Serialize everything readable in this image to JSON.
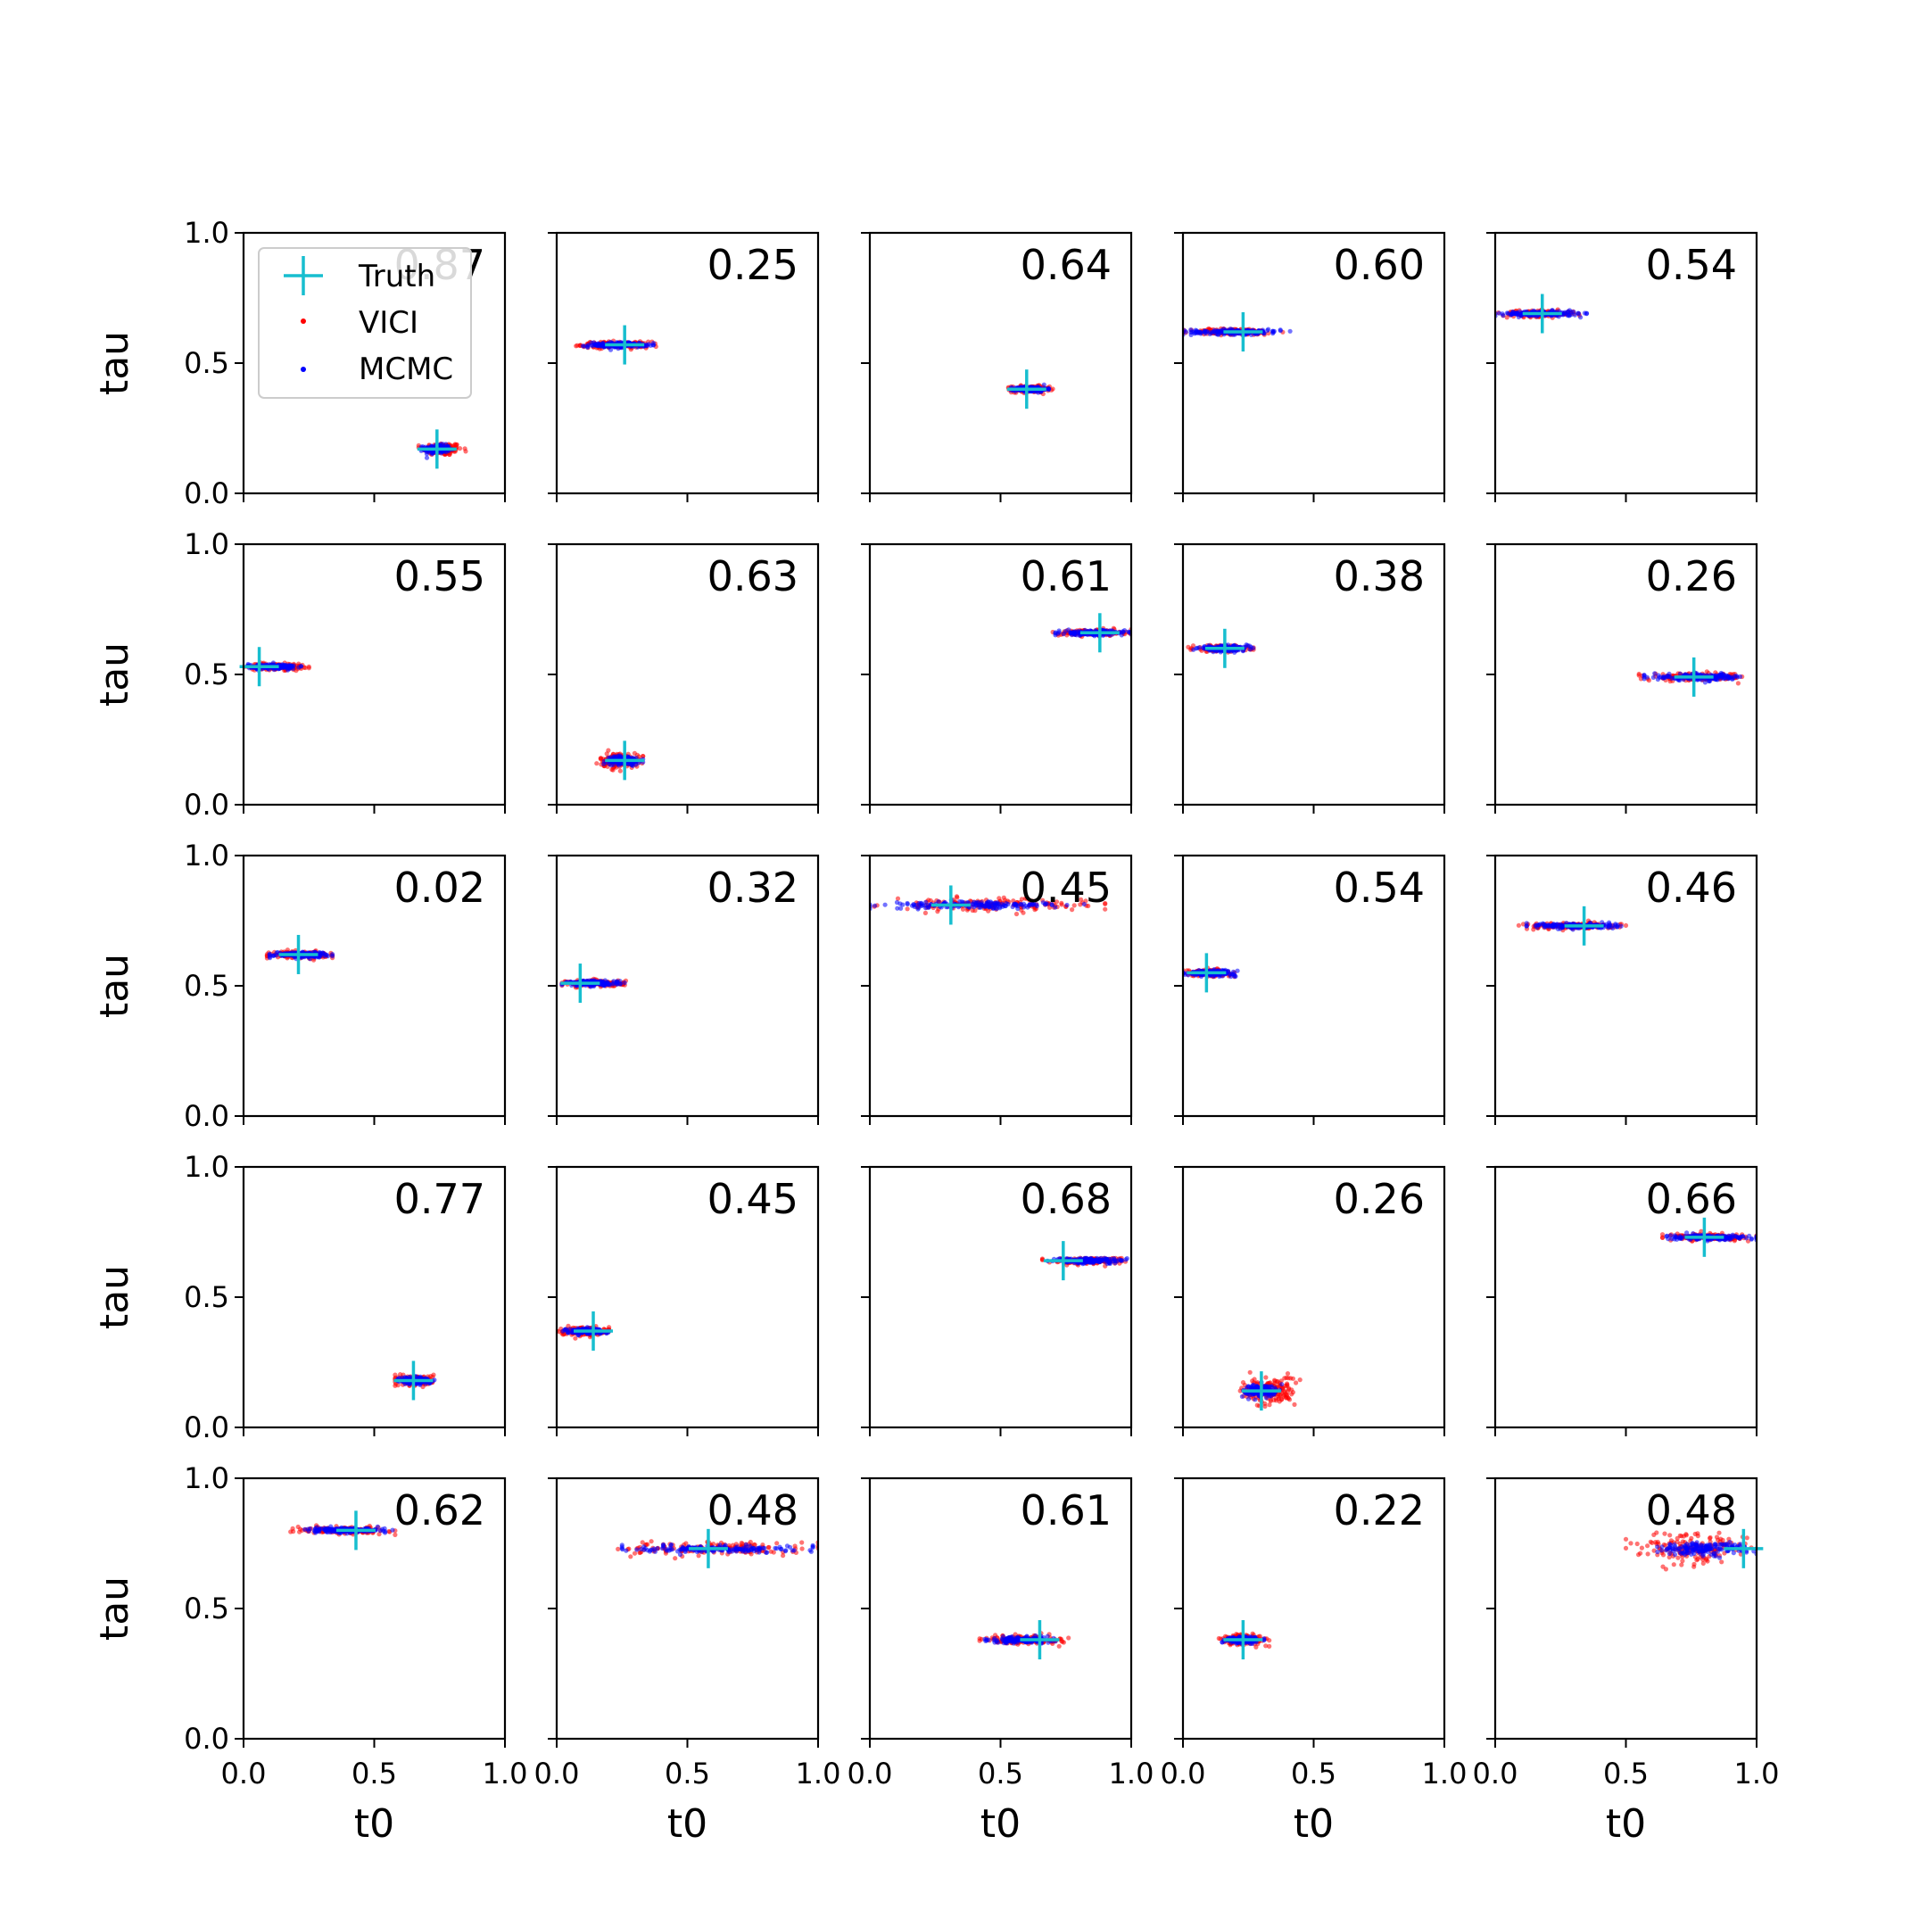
{
  "chart_data": {
    "type": "scatter",
    "grid": false,
    "rows": 5,
    "cols": 5,
    "xlabel": "t0",
    "ylabel": "tau",
    "xlim": [
      0.0,
      1.0
    ],
    "ylim": [
      0.0,
      1.0
    ],
    "xticks": [
      "0.0",
      "0.5",
      "1.0"
    ],
    "yticks": [
      "0.0",
      "0.5",
      "1.0"
    ],
    "legend": {
      "placement": "upper-left of first panel",
      "entries": [
        {
          "name": "Truth",
          "color": "#17becf",
          "marker": "plus"
        },
        {
          "name": "VICI",
          "color": "#ff0000",
          "marker": "dot"
        },
        {
          "name": "MCMC",
          "color": "#0000ff",
          "marker": "dot"
        }
      ]
    },
    "series_colors": {
      "truth": "#17becf",
      "vici": "#ff0000",
      "mcmc": "#0000ff"
    },
    "panels": [
      {
        "score": "0.87",
        "truth": [
          0.74,
          0.17
        ],
        "vici": {
          "x": [
            0.67,
            0.85
          ],
          "y": [
            0.17,
            0.17
          ],
          "spread_y": 0.012
        },
        "mcmc": {
          "x": [
            0.68,
            0.8
          ],
          "y": [
            0.17,
            0.17
          ],
          "spread_y": 0.008
        }
      },
      {
        "score": "0.25",
        "truth": [
          0.26,
          0.57
        ],
        "vici": {
          "x": [
            0.07,
            0.38
          ],
          "y": [
            0.57,
            0.57
          ],
          "spread_y": 0.006
        },
        "mcmc": {
          "x": [
            0.1,
            0.37
          ],
          "y": [
            0.57,
            0.57
          ],
          "spread_y": 0.005
        }
      },
      {
        "score": "0.64",
        "truth": [
          0.6,
          0.4
        ],
        "vici": {
          "x": [
            0.53,
            0.7
          ],
          "y": [
            0.4,
            0.4
          ],
          "spread_y": 0.006
        },
        "mcmc": {
          "x": [
            0.54,
            0.69
          ],
          "y": [
            0.4,
            0.4
          ],
          "spread_y": 0.005
        }
      },
      {
        "score": "0.60",
        "truth": [
          0.23,
          0.62
        ],
        "vici": {
          "x": [
            0.0,
            0.39
          ],
          "y": [
            0.62,
            0.62
          ],
          "spread_y": 0.006
        },
        "mcmc": {
          "x": [
            0.0,
            0.41
          ],
          "y": [
            0.62,
            0.62
          ],
          "spread_y": 0.005
        }
      },
      {
        "score": "0.54",
        "truth": [
          0.18,
          0.69
        ],
        "vici": {
          "x": [
            0.0,
            0.33
          ],
          "y": [
            0.69,
            0.69
          ],
          "spread_y": 0.006
        },
        "mcmc": {
          "x": [
            0.0,
            0.35
          ],
          "y": [
            0.69,
            0.69
          ],
          "spread_y": 0.005
        }
      },
      {
        "score": "0.55",
        "truth": [
          0.06,
          0.53
        ],
        "vici": {
          "x": [
            0.0,
            0.25
          ],
          "y": [
            0.53,
            0.53
          ],
          "spread_y": 0.006
        },
        "mcmc": {
          "x": [
            0.0,
            0.22
          ],
          "y": [
            0.53,
            0.53
          ],
          "spread_y": 0.005
        }
      },
      {
        "score": "0.63",
        "truth": [
          0.26,
          0.17
        ],
        "vici": {
          "x": [
            0.15,
            0.33
          ],
          "y": [
            0.17,
            0.17
          ],
          "spread_y": 0.014
        },
        "mcmc": {
          "x": [
            0.18,
            0.33
          ],
          "y": [
            0.17,
            0.17
          ],
          "spread_y": 0.008
        }
      },
      {
        "score": "0.61",
        "truth": [
          0.88,
          0.66
        ],
        "vici": {
          "x": [
            0.7,
            1.0
          ],
          "y": [
            0.66,
            0.66
          ],
          "spread_y": 0.006
        },
        "mcmc": {
          "x": [
            0.71,
            1.0
          ],
          "y": [
            0.66,
            0.66
          ],
          "spread_y": 0.005
        }
      },
      {
        "score": "0.38",
        "truth": [
          0.16,
          0.6
        ],
        "vici": {
          "x": [
            0.02,
            0.27
          ],
          "y": [
            0.6,
            0.6
          ],
          "spread_y": 0.006
        },
        "mcmc": {
          "x": [
            0.04,
            0.27
          ],
          "y": [
            0.6,
            0.6
          ],
          "spread_y": 0.005
        }
      },
      {
        "score": "0.26",
        "truth": [
          0.76,
          0.49
        ],
        "vici": {
          "x": [
            0.55,
            1.0
          ],
          "y": [
            0.49,
            0.49
          ],
          "spread_y": 0.007
        },
        "mcmc": {
          "x": [
            0.57,
            1.0
          ],
          "y": [
            0.49,
            0.49
          ],
          "spread_y": 0.006
        }
      },
      {
        "score": "0.02",
        "truth": [
          0.21,
          0.62
        ],
        "vici": {
          "x": [
            0.09,
            0.34
          ],
          "y": [
            0.62,
            0.62
          ],
          "spread_y": 0.006
        },
        "mcmc": {
          "x": [
            0.1,
            0.34
          ],
          "y": [
            0.62,
            0.62
          ],
          "spread_y": 0.005
        }
      },
      {
        "score": "0.32",
        "truth": [
          0.09,
          0.51
        ],
        "vici": {
          "x": [
            0.02,
            0.28
          ],
          "y": [
            0.51,
            0.51
          ],
          "spread_y": 0.006
        },
        "mcmc": {
          "x": [
            0.02,
            0.26
          ],
          "y": [
            0.51,
            0.51
          ],
          "spread_y": 0.005
        }
      },
      {
        "score": "0.45",
        "truth": [
          0.31,
          0.81
        ],
        "vici": {
          "x": [
            0.0,
            0.9
          ],
          "y": [
            0.81,
            0.81
          ],
          "spread_y": 0.012
        },
        "mcmc": {
          "x": [
            0.0,
            0.82
          ],
          "y": [
            0.81,
            0.81
          ],
          "spread_y": 0.007
        }
      },
      {
        "score": "0.54",
        "truth": [
          0.09,
          0.55
        ],
        "vici": {
          "x": [
            0.0,
            0.2
          ],
          "y": [
            0.55,
            0.55
          ],
          "spread_y": 0.006
        },
        "mcmc": {
          "x": [
            0.0,
            0.22
          ],
          "y": [
            0.55,
            0.55
          ],
          "spread_y": 0.005
        }
      },
      {
        "score": "0.46",
        "truth": [
          0.34,
          0.73
        ],
        "vici": {
          "x": [
            0.09,
            0.5
          ],
          "y": [
            0.73,
            0.73
          ],
          "spread_y": 0.006
        },
        "mcmc": {
          "x": [
            0.12,
            0.49
          ],
          "y": [
            0.73,
            0.73
          ],
          "spread_y": 0.005
        }
      },
      {
        "score": "0.77",
        "truth": [
          0.65,
          0.18
        ],
        "vici": {
          "x": [
            0.58,
            0.74
          ],
          "y": [
            0.18,
            0.18
          ],
          "spread_y": 0.01
        },
        "mcmc": {
          "x": [
            0.59,
            0.73
          ],
          "y": [
            0.18,
            0.18
          ],
          "spread_y": 0.007
        }
      },
      {
        "score": "0.45",
        "truth": [
          0.14,
          0.37
        ],
        "vici": {
          "x": [
            0.0,
            0.2
          ],
          "y": [
            0.37,
            0.37
          ],
          "spread_y": 0.008
        },
        "mcmc": {
          "x": [
            0.02,
            0.2
          ],
          "y": [
            0.37,
            0.37
          ],
          "spread_y": 0.005
        }
      },
      {
        "score": "0.68",
        "truth": [
          0.74,
          0.64
        ],
        "vici": {
          "x": [
            0.66,
            1.0
          ],
          "y": [
            0.64,
            0.64
          ],
          "spread_y": 0.006
        },
        "mcmc": {
          "x": [
            0.68,
            1.0
          ],
          "y": [
            0.64,
            0.64
          ],
          "spread_y": 0.005
        }
      },
      {
        "score": "0.26",
        "truth": [
          0.3,
          0.14
        ],
        "vici": {
          "x": [
            0.21,
            0.45
          ],
          "y": [
            0.14,
            0.14
          ],
          "spread_y": 0.028
        },
        "mcmc": {
          "x": [
            0.22,
            0.38
          ],
          "y": [
            0.14,
            0.14
          ],
          "spread_y": 0.012
        }
      },
      {
        "score": "0.66",
        "truth": [
          0.8,
          0.73
        ],
        "vici": {
          "x": [
            0.64,
            1.0
          ],
          "y": [
            0.73,
            0.73
          ],
          "spread_y": 0.006
        },
        "mcmc": {
          "x": [
            0.64,
            1.0
          ],
          "y": [
            0.73,
            0.73
          ],
          "spread_y": 0.005
        }
      },
      {
        "score": "0.62",
        "truth": [
          0.43,
          0.8
        ],
        "vici": {
          "x": [
            0.18,
            0.58
          ],
          "y": [
            0.8,
            0.8
          ],
          "spread_y": 0.006
        },
        "mcmc": {
          "x": [
            0.22,
            0.57
          ],
          "y": [
            0.8,
            0.8
          ],
          "spread_y": 0.005
        }
      },
      {
        "score": "0.48",
        "truth": [
          0.58,
          0.73
        ],
        "vici": {
          "x": [
            0.2,
            1.0
          ],
          "y": [
            0.73,
            0.73
          ],
          "spread_y": 0.012
        },
        "mcmc": {
          "x": [
            0.25,
            0.98
          ],
          "y": [
            0.73,
            0.73
          ],
          "spread_y": 0.007
        }
      },
      {
        "score": "0.61",
        "truth": [
          0.65,
          0.38
        ],
        "vici": {
          "x": [
            0.42,
            0.76
          ],
          "y": [
            0.38,
            0.38
          ],
          "spread_y": 0.008
        },
        "mcmc": {
          "x": [
            0.44,
            0.73
          ],
          "y": [
            0.38,
            0.38
          ],
          "spread_y": 0.006
        }
      },
      {
        "score": "0.22",
        "truth": [
          0.23,
          0.38
        ],
        "vici": {
          "x": [
            0.13,
            0.33
          ],
          "y": [
            0.38,
            0.38
          ],
          "spread_y": 0.01
        },
        "mcmc": {
          "x": [
            0.15,
            0.31
          ],
          "y": [
            0.38,
            0.38
          ],
          "spread_y": 0.006
        }
      },
      {
        "score": "0.48",
        "truth": [
          0.95,
          0.73
        ],
        "vici": {
          "x": [
            0.5,
            1.0
          ],
          "y": [
            0.73,
            0.73
          ],
          "spread_y": 0.032
        },
        "mcmc": {
          "x": [
            0.58,
            1.0
          ],
          "y": [
            0.73,
            0.73
          ],
          "spread_y": 0.012
        }
      }
    ]
  }
}
